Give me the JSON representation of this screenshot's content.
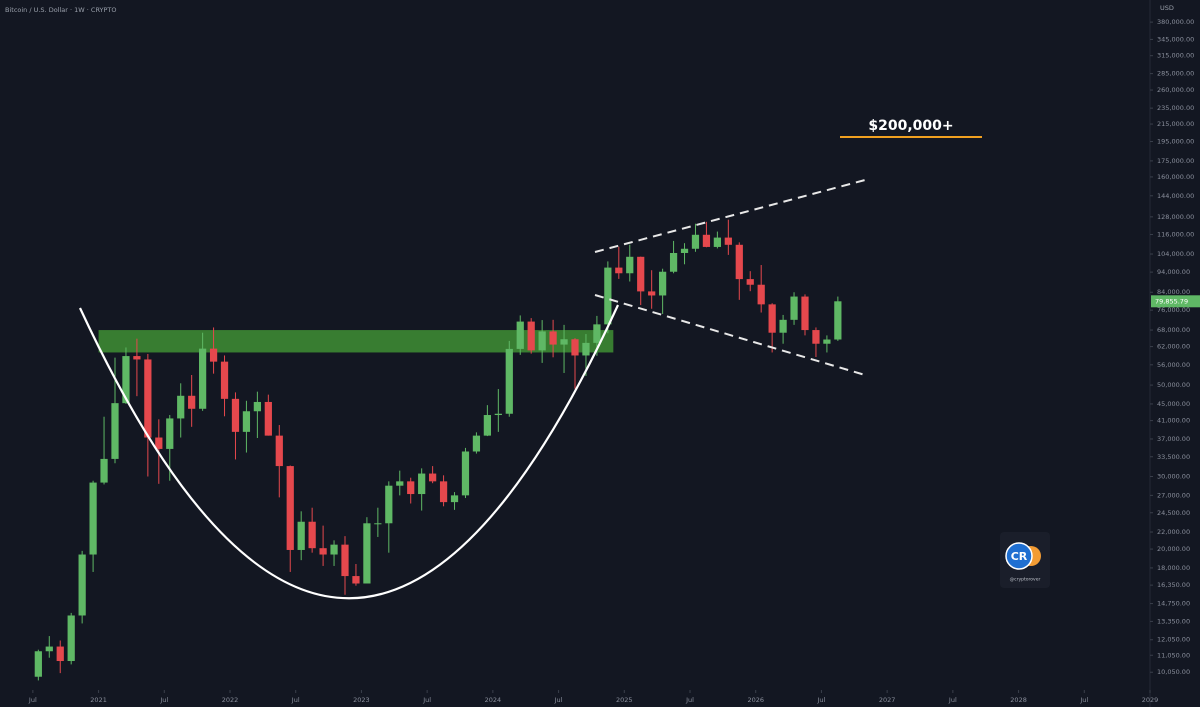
{
  "chart_data": {
    "type": "candlestick",
    "title": "Bitcoin / U.S. Dollar · 1W · CRYPTO",
    "currency": "USD",
    "log_scale": true,
    "up_color": "#5fb865",
    "down_color": "#e5484d",
    "x": [
      "2020-07",
      "2020-08",
      "2020-09",
      "2020-10",
      "2020-11",
      "2020-12",
      "2021-01",
      "2021-02",
      "2021-03",
      "2021-04",
      "2021-05",
      "2021-06",
      "2021-07",
      "2021-08",
      "2021-09",
      "2021-10",
      "2021-11",
      "2021-12",
      "2022-01",
      "2022-02",
      "2022-03",
      "2022-04",
      "2022-05",
      "2022-06",
      "2022-07",
      "2022-08",
      "2022-09",
      "2022-10",
      "2022-11",
      "2022-12",
      "2023-01",
      "2023-02",
      "2023-03",
      "2023-04",
      "2023-05",
      "2023-06",
      "2023-07",
      "2023-08",
      "2023-09",
      "2023-10",
      "2023-11",
      "2023-12",
      "2024-01",
      "2024-02",
      "2024-03",
      "2024-04",
      "2024-05",
      "2024-06",
      "2024-07",
      "2024-08",
      "2024-09",
      "2024-10",
      "2024-11",
      "2024-12",
      "2025-01",
      "2025-02",
      "2025-03",
      "2025-04",
      "2025-05",
      "2025-06",
      "2025-07",
      "2025-08",
      "2025-09",
      "2025-10",
      "2025-11",
      "2025-12",
      "2026-01",
      "2026-02",
      "2026-03",
      "2026-04",
      "2026-05",
      "2026-06",
      "2026-07",
      "2026-08"
    ],
    "open": [
      9800,
      11300,
      11600,
      10700,
      13800,
      19400,
      29000,
      33100,
      45200,
      58800,
      57700,
      37300,
      35000,
      41500,
      47100,
      43800,
      61300,
      57000,
      46300,
      38500,
      43200,
      45500,
      37700,
      31800,
      19900,
      23300,
      20100,
      19400,
      20500,
      17200,
      16500,
      23100,
      23100,
      28500,
      29200,
      27200,
      30500,
      29200,
      26000,
      27000,
      34500,
      37700,
      42300,
      42600,
      61200,
      71300,
      60700,
      67500,
      62700,
      64600,
      59000,
      63300,
      70200,
      96400,
      93400,
      102400,
      84400,
      82500,
      94200,
      104600,
      107100,
      115800,
      108200,
      114000,
      109500,
      90400,
      87600,
      78500,
      67000,
      72000,
      82000,
      68000,
      63000,
      64500
    ],
    "high": [
      11400,
      12300,
      12000,
      14000,
      19800,
      29300,
      41900,
      58300,
      61700,
      64800,
      59500,
      41300,
      42300,
      50500,
      52900,
      67000,
      69000,
      59000,
      48000,
      45800,
      48200,
      47400,
      40000,
      31900,
      24700,
      25200,
      22800,
      21000,
      21500,
      18400,
      23900,
      25200,
      29200,
      31000,
      29800,
      31400,
      31800,
      30200,
      27500,
      35200,
      38400,
      44700,
      48900,
      64000,
      73800,
      72700,
      71900,
      72000,
      70000,
      65000,
      66500,
      73600,
      99800,
      108300,
      109600,
      102500,
      95000,
      95800,
      111900,
      110500,
      123200,
      124500,
      117900,
      126000,
      111000,
      94500,
      97800,
      79000,
      74000,
      84000,
      83000,
      69000,
      66000,
      82000
    ],
    "low": [
      9600,
      10900,
      10000,
      10500,
      13200,
      17600,
      28700,
      32300,
      45000,
      47000,
      30000,
      28800,
      29300,
      37300,
      39600,
      43300,
      53300,
      42000,
      33000,
      34300,
      37200,
      37700,
      26700,
      17600,
      18800,
      19600,
      18200,
      18200,
      15500,
      16300,
      16500,
      21400,
      19600,
      27000,
      25800,
      24800,
      28900,
      25400,
      24900,
      26600,
      34100,
      37600,
      38500,
      41900,
      59200,
      59600,
      56600,
      58400,
      53500,
      49000,
      52600,
      58900,
      66800,
      90500,
      89200,
      78200,
      76600,
      74400,
      93400,
      98200,
      105300,
      108000,
      107300,
      103500,
      80500,
      84500,
      75000,
      60000,
      63000,
      70000,
      66000,
      58500,
      60000,
      64000
    ],
    "close": [
      11300,
      11600,
      10700,
      13800,
      19400,
      29000,
      33100,
      45200,
      58800,
      57700,
      37300,
      35000,
      41500,
      47100,
      43800,
      61300,
      57000,
      46300,
      38500,
      43200,
      45500,
      37700,
      31800,
      19900,
      23300,
      20100,
      19400,
      20500,
      17200,
      16500,
      23100,
      23100,
      28500,
      29200,
      27200,
      30500,
      29200,
      26000,
      27000,
      34500,
      37700,
      42300,
      42600,
      61200,
      71300,
      60700,
      67500,
      62700,
      64600,
      59000,
      63300,
      70200,
      96400,
      93400,
      102400,
      84400,
      82500,
      94200,
      104600,
      107100,
      115800,
      108200,
      114000,
      109500,
      90400,
      87600,
      78500,
      67000,
      72000,
      82000,
      68000,
      63000,
      64500,
      79855.79
    ],
    "last_price_label": "79,855.79",
    "xlim": [
      "2020-04",
      "2029-01"
    ],
    "xticks": [
      {
        "value": "2020-07",
        "label": "Jul"
      },
      {
        "value": "2021-01",
        "label": "2021"
      },
      {
        "value": "2021-07",
        "label": "Jul"
      },
      {
        "value": "2022-01",
        "label": "2022"
      },
      {
        "value": "2022-07",
        "label": "Jul"
      },
      {
        "value": "2023-01",
        "label": "2023"
      },
      {
        "value": "2023-07",
        "label": "Jul"
      },
      {
        "value": "2024-01",
        "label": "2024"
      },
      {
        "value": "2024-07",
        "label": "Jul"
      },
      {
        "value": "2025-01",
        "label": "2025"
      },
      {
        "value": "2025-07",
        "label": "Jul"
      },
      {
        "value": "2026-01",
        "label": "2026"
      },
      {
        "value": "2026-07",
        "label": "Jul"
      },
      {
        "value": "2027-01",
        "label": "2027"
      },
      {
        "value": "2027-07",
        "label": "Jul"
      },
      {
        "value": "2028-01",
        "label": "2028"
      },
      {
        "value": "2028-07",
        "label": "Jul"
      },
      {
        "value": "2029-01",
        "label": "2029"
      }
    ],
    "ylim": [
      9100,
      430000
    ],
    "yticks": [
      {
        "value": 380000,
        "label": "380,000.00"
      },
      {
        "value": 345000,
        "label": "345,000.00"
      },
      {
        "value": 315000,
        "label": "315,000.00"
      },
      {
        "value": 285000,
        "label": "285,000.00"
      },
      {
        "value": 260000,
        "label": "260,000.00"
      },
      {
        "value": 235000,
        "label": "235,000.00"
      },
      {
        "value": 215000,
        "label": "215,000.00"
      },
      {
        "value": 195000,
        "label": "195,000.00"
      },
      {
        "value": 175000,
        "label": "175,000.00"
      },
      {
        "value": 160000,
        "label": "160,000.00"
      },
      {
        "value": 144000,
        "label": "144,000.00"
      },
      {
        "value": 128000,
        "label": "128,000.00"
      },
      {
        "value": 116000,
        "label": "116,000.00"
      },
      {
        "value": 104000,
        "label": "104,000.00"
      },
      {
        "value": 94000,
        "label": "94,000.00"
      },
      {
        "value": 84000,
        "label": "84,000.00"
      },
      {
        "value": 76000,
        "label": "76,000.00"
      },
      {
        "value": 68000,
        "label": "68,000.00"
      },
      {
        "value": 62000,
        "label": "62,000.00"
      },
      {
        "value": 56000,
        "label": "56,000.00"
      },
      {
        "value": 50000,
        "label": "50,000.00"
      },
      {
        "value": 45000,
        "label": "45,000.00"
      },
      {
        "value": 41000,
        "label": "41,000.00"
      },
      {
        "value": 37000,
        "label": "37,000.00"
      },
      {
        "value": 33500,
        "label": "33,500.00"
      },
      {
        "value": 30000,
        "label": "30,000.00"
      },
      {
        "value": 27000,
        "label": "27,000.00"
      },
      {
        "value": 24500,
        "label": "24,500.00"
      },
      {
        "value": 22000,
        "label": "22,000.00"
      },
      {
        "value": 20000,
        "label": "20,000.00"
      },
      {
        "value": 18000,
        "label": "18,000.00"
      },
      {
        "value": 16350,
        "label": "16,350.00"
      },
      {
        "value": 14750,
        "label": "14,750.00"
      },
      {
        "value": 13350,
        "label": "13,350.00"
      },
      {
        "value": 12050,
        "label": "12,050.00"
      },
      {
        "value": 11050,
        "label": "11,050.00"
      },
      {
        "value": 10050,
        "label": "10,050.00"
      }
    ],
    "zone": {
      "from": "2021-01",
      "to": "2024-12",
      "low": 60000,
      "high": 68000,
      "color": "#3f8f34"
    },
    "target": {
      "label": "$200,000+",
      "value": 200000,
      "color": "#f0a020"
    },
    "logo_text": "CR",
    "handle": "@cryptorover"
  }
}
